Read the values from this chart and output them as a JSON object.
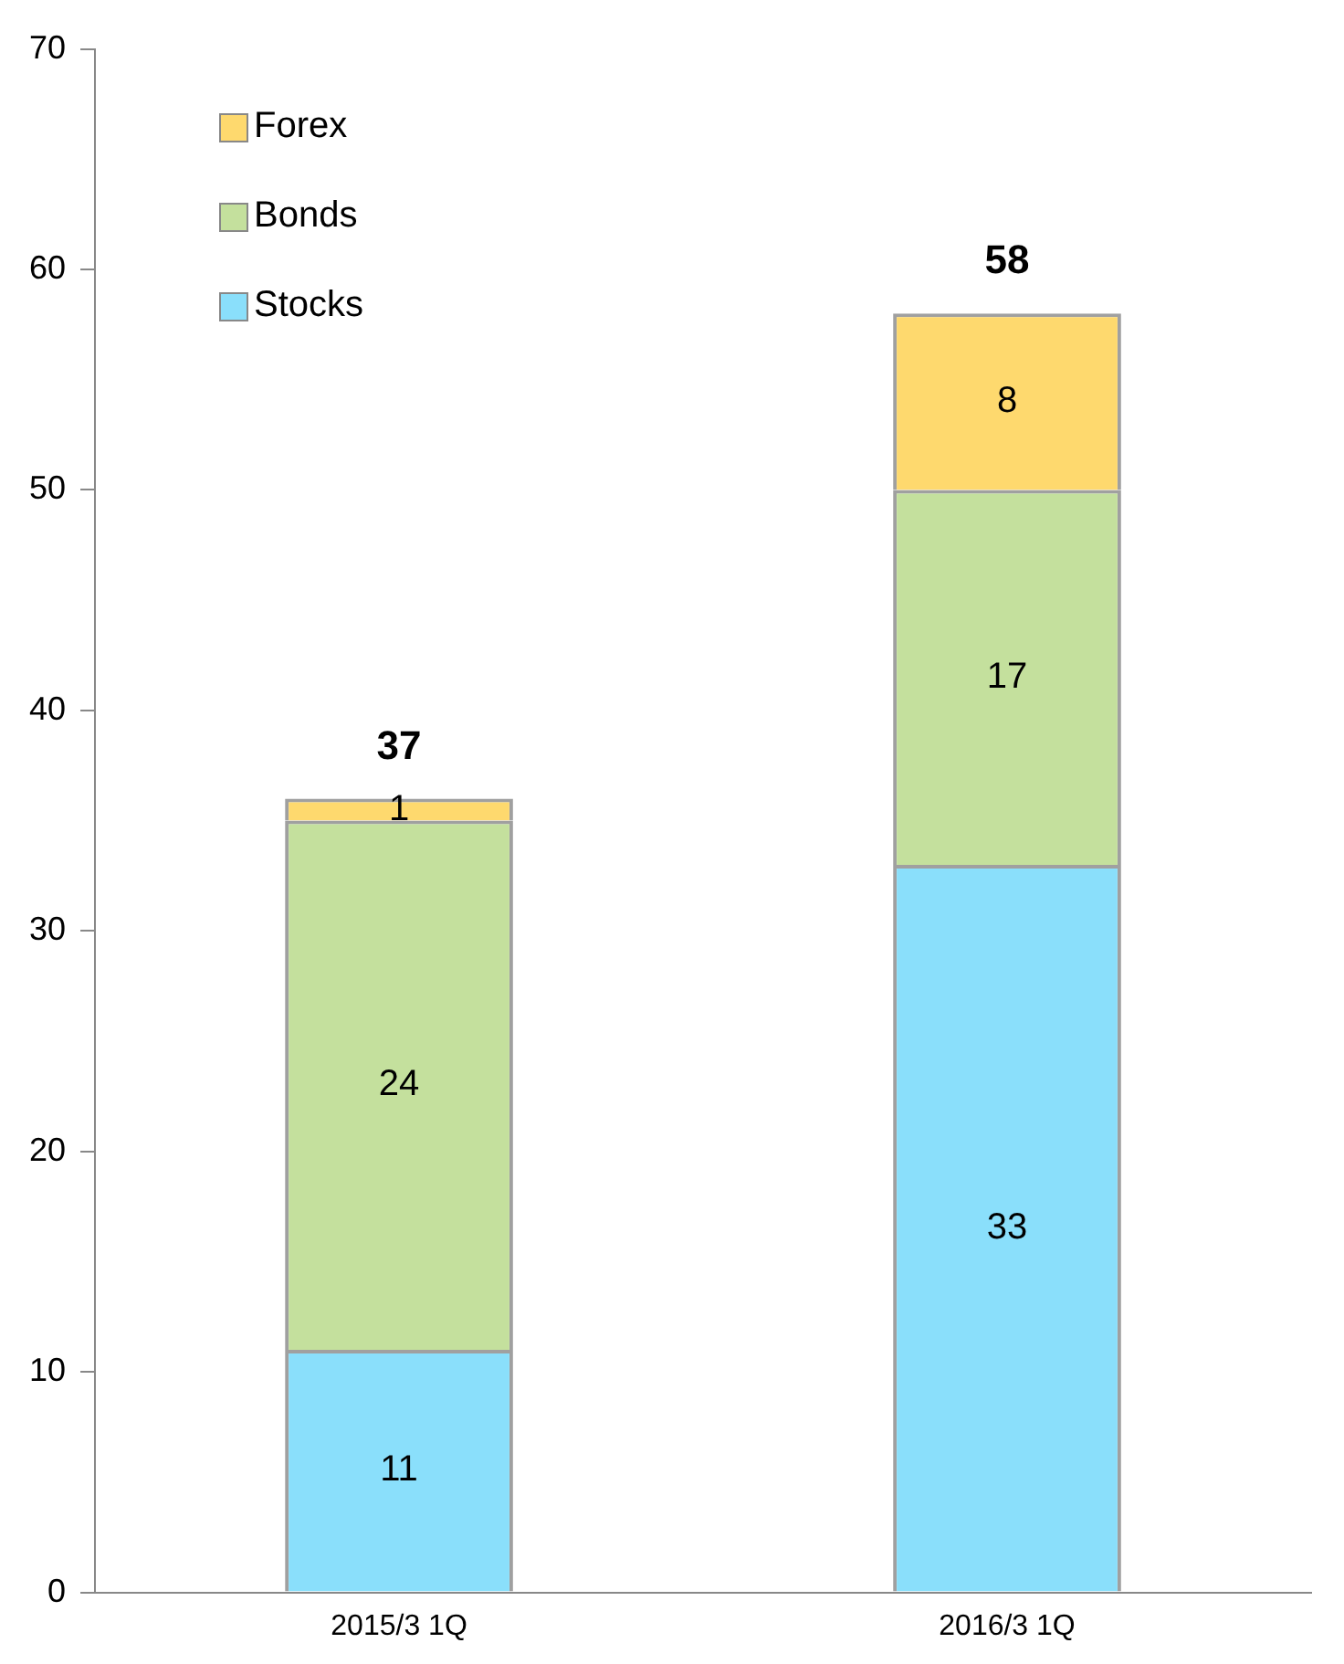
{
  "chart_data": {
    "type": "bar",
    "stacked": true,
    "categories": [
      "2015/3 1Q",
      "2016/3 1Q"
    ],
    "series": [
      {
        "name": "Stocks",
        "color": "#8adffb",
        "values": [
          11,
          33
        ]
      },
      {
        "name": "Bonds",
        "color": "#c4e09d",
        "values": [
          24,
          17
        ]
      },
      {
        "name": "Forex",
        "color": "#fed96e",
        "values": [
          1,
          8
        ]
      }
    ],
    "totals": [
      "37",
      "58"
    ],
    "data_labels": true,
    "ylim": [
      0,
      70
    ],
    "yticks": [
      0,
      10,
      20,
      30,
      40,
      50,
      60,
      70
    ],
    "grid": false,
    "legend": "top left"
  }
}
